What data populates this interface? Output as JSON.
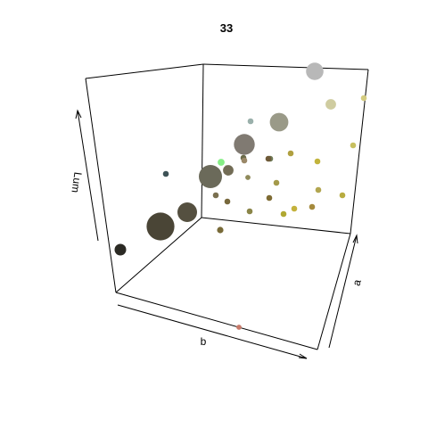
{
  "chart_data": {
    "type": "scatter",
    "title": "33",
    "xlabel": "b",
    "ylabel": "a",
    "zlabel": "Lum",
    "grid": false,
    "legend": "none",
    "points": [
      {
        "color": "#2b2a24",
        "size": 1.0
      },
      {
        "color": "#4a4536",
        "size": 2.4
      },
      {
        "color": "#555040",
        "size": 1.7
      },
      {
        "color": "#3d5256",
        "size": 0.5
      },
      {
        "color": "#6b6a5a",
        "size": 2.0
      },
      {
        "color": "#726c55",
        "size": 0.9
      },
      {
        "color": "#807a72",
        "size": 1.8
      },
      {
        "color": "#9a9a88",
        "size": 1.6
      },
      {
        "color": "#b8b8b8",
        "size": 1.5
      },
      {
        "color": "#cfcca0",
        "size": 0.9
      },
      {
        "color": "#9ab0ab",
        "size": 0.5
      },
      {
        "color": "#6f7a57",
        "size": 0.5
      },
      {
        "color": "#86ef86",
        "size": 0.6
      },
      {
        "color": "#8f8a5a",
        "size": 0.45
      },
      {
        "color": "#7a7050",
        "size": 0.5
      },
      {
        "color": "#77683c",
        "size": 0.5
      },
      {
        "color": "#786a38",
        "size": 0.55
      },
      {
        "color": "#8a8548",
        "size": 0.5
      },
      {
        "color": "#7e6b33",
        "size": 0.5
      },
      {
        "color": "#a49a4a",
        "size": 0.5
      },
      {
        "color": "#b0a040",
        "size": 0.5
      },
      {
        "color": "#c2b43c",
        "size": 0.5
      },
      {
        "color": "#b2a650",
        "size": 0.5
      },
      {
        "color": "#a58a3c",
        "size": 0.5
      },
      {
        "color": "#b0a832",
        "size": 0.5
      },
      {
        "color": "#c4b23c",
        "size": 0.5
      },
      {
        "color": "#b8ac40",
        "size": 0.5
      },
      {
        "color": "#c8c060",
        "size": 0.5
      },
      {
        "color": "#d4cc80",
        "size": 0.5
      },
      {
        "color": "#6e5a38",
        "size": 0.5
      },
      {
        "color": "#6a6a48",
        "size": 0.5
      },
      {
        "color": "#9a8868",
        "size": 0.5
      },
      {
        "color": "#c87a6a",
        "size": 0.45
      }
    ]
  }
}
